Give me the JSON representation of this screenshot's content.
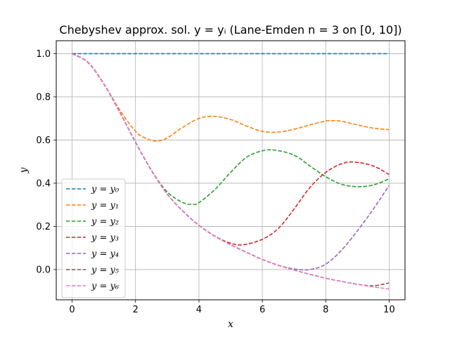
{
  "chart_data": {
    "type": "line",
    "title": "Chebyshev approx. sol. y = yᵢ (Lane-Emden n = 3 on [0, 10])",
    "xlabel": "x",
    "ylabel": "y",
    "xlim": [
      -0.5,
      10.5
    ],
    "ylim": [
      -0.14,
      1.06
    ],
    "xticks": [
      0,
      2,
      4,
      6,
      8,
      10
    ],
    "xtick_labels": [
      "0",
      "2",
      "4",
      "6",
      "8",
      "10"
    ],
    "yticks": [
      0.0,
      0.2,
      0.4,
      0.6,
      0.8,
      1.0
    ],
    "ytick_labels": [
      "0.0",
      "0.2",
      "0.4",
      "0.6",
      "0.8",
      "1.0"
    ],
    "grid": true,
    "legend_position": "lower-left",
    "line_style": "dashed",
    "series": [
      {
        "name": "y = y₀",
        "color": "#1f77b4",
        "x": [
          0,
          10
        ],
        "y": [
          1.0,
          1.0
        ]
      },
      {
        "name": "y = y₁",
        "color": "#ff7f0e",
        "x": [
          0,
          0.5,
          1,
          1.5,
          2,
          2.3,
          2.65,
          3,
          3.5,
          4,
          4.45,
          5,
          5.5,
          6,
          6.5,
          7,
          7.5,
          8,
          8.2,
          8.5,
          9,
          9.5,
          10
        ],
        "y": [
          1.0,
          0.96,
          0.86,
          0.74,
          0.64,
          0.61,
          0.595,
          0.61,
          0.66,
          0.7,
          0.71,
          0.695,
          0.665,
          0.64,
          0.637,
          0.65,
          0.67,
          0.688,
          0.69,
          0.687,
          0.67,
          0.655,
          0.648
        ]
      },
      {
        "name": "y = y₂",
        "color": "#2ca02c",
        "x": [
          0,
          0.5,
          1,
          1.5,
          2,
          2.5,
          3,
          3.5,
          3.8,
          4,
          4.5,
          5,
          5.5,
          6,
          6.4,
          7,
          7.5,
          8,
          8.5,
          9,
          9.5,
          10
        ],
        "y": [
          1.0,
          0.96,
          0.86,
          0.73,
          0.59,
          0.46,
          0.36,
          0.31,
          0.302,
          0.31,
          0.37,
          0.45,
          0.52,
          0.55,
          0.553,
          0.53,
          0.48,
          0.43,
          0.395,
          0.384,
          0.392,
          0.42
        ]
      },
      {
        "name": "y = y₃",
        "color": "#d62728",
        "x": [
          0,
          0.5,
          1,
          1.5,
          2,
          2.5,
          3,
          3.5,
          4,
          4.5,
          5,
          5.4,
          6,
          6.5,
          7,
          7.5,
          8,
          8.5,
          8.9,
          9.5,
          10
        ],
        "y": [
          1.0,
          0.96,
          0.86,
          0.73,
          0.59,
          0.46,
          0.35,
          0.27,
          0.205,
          0.155,
          0.122,
          0.115,
          0.14,
          0.19,
          0.28,
          0.38,
          0.45,
          0.49,
          0.498,
          0.48,
          0.44
        ]
      },
      {
        "name": "y = y₄",
        "color": "#9467bd",
        "x": [
          0,
          0.5,
          1,
          1.5,
          2,
          2.5,
          3,
          3.5,
          4,
          4.5,
          5,
          5.5,
          6,
          6.5,
          7,
          7.5,
          8,
          8.5,
          9,
          9.5,
          10
        ],
        "y": [
          1.0,
          0.96,
          0.86,
          0.73,
          0.59,
          0.46,
          0.35,
          0.27,
          0.205,
          0.155,
          0.115,
          0.08,
          0.047,
          0.02,
          0.003,
          0.0,
          0.025,
          0.09,
          0.18,
          0.28,
          0.39
        ]
      },
      {
        "name": "y = y₅",
        "color": "#8c564b",
        "x": [
          0,
          0.5,
          1,
          1.5,
          2,
          2.5,
          3,
          3.5,
          4,
          4.5,
          5,
          5.5,
          6,
          6.5,
          7,
          7.5,
          8,
          8.5,
          9,
          9.5,
          10
        ],
        "y": [
          1.0,
          0.96,
          0.86,
          0.73,
          0.59,
          0.46,
          0.35,
          0.27,
          0.205,
          0.155,
          0.115,
          0.08,
          0.047,
          0.02,
          -0.002,
          -0.022,
          -0.04,
          -0.055,
          -0.068,
          -0.075,
          -0.062
        ]
      },
      {
        "name": "y = y₆",
        "color": "#e377c2",
        "x": [
          0,
          0.5,
          1,
          1.5,
          2,
          2.5,
          3,
          3.5,
          4,
          4.5,
          5,
          5.5,
          6,
          6.5,
          7,
          7.5,
          8,
          8.5,
          9,
          9.5,
          10
        ],
        "y": [
          1.0,
          0.96,
          0.86,
          0.73,
          0.59,
          0.46,
          0.35,
          0.27,
          0.205,
          0.155,
          0.115,
          0.08,
          0.047,
          0.02,
          -0.002,
          -0.022,
          -0.04,
          -0.055,
          -0.068,
          -0.08,
          -0.09
        ]
      }
    ]
  }
}
